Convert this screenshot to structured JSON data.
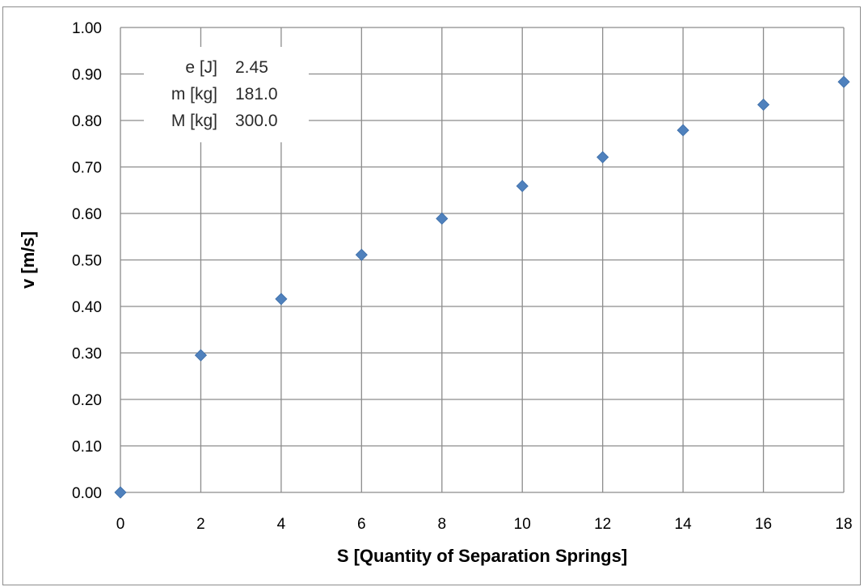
{
  "chart_data": {
    "type": "scatter",
    "title": "",
    "xlabel": "S [Quantity of Separation Springs]",
    "ylabel": "v [m/s]",
    "xlim": [
      0,
      18
    ],
    "ylim": [
      0,
      1.0
    ],
    "x_ticks": [
      "0",
      "2",
      "4",
      "6",
      "8",
      "10",
      "12",
      "14",
      "16",
      "18"
    ],
    "y_ticks": [
      "0.00",
      "0.10",
      "0.20",
      "0.30",
      "0.40",
      "0.50",
      "0.60",
      "0.70",
      "0.80",
      "0.90",
      "1.00"
    ],
    "grid": true,
    "legend": "none",
    "marker": "diamond",
    "marker_color": "#4f81bd",
    "series": [
      {
        "x": [
          0,
          2,
          4,
          6,
          8,
          10,
          12,
          14,
          16,
          18
        ],
        "y": [
          0.0,
          0.295,
          0.416,
          0.511,
          0.589,
          0.659,
          0.721,
          0.779,
          0.834,
          0.883
        ]
      }
    ],
    "annotations": [
      {
        "label": "e [J]",
        "value": "2.45"
      },
      {
        "label": "m [kg]",
        "value": "181.0"
      },
      {
        "label": "M [kg]",
        "value": "300.0"
      }
    ]
  }
}
